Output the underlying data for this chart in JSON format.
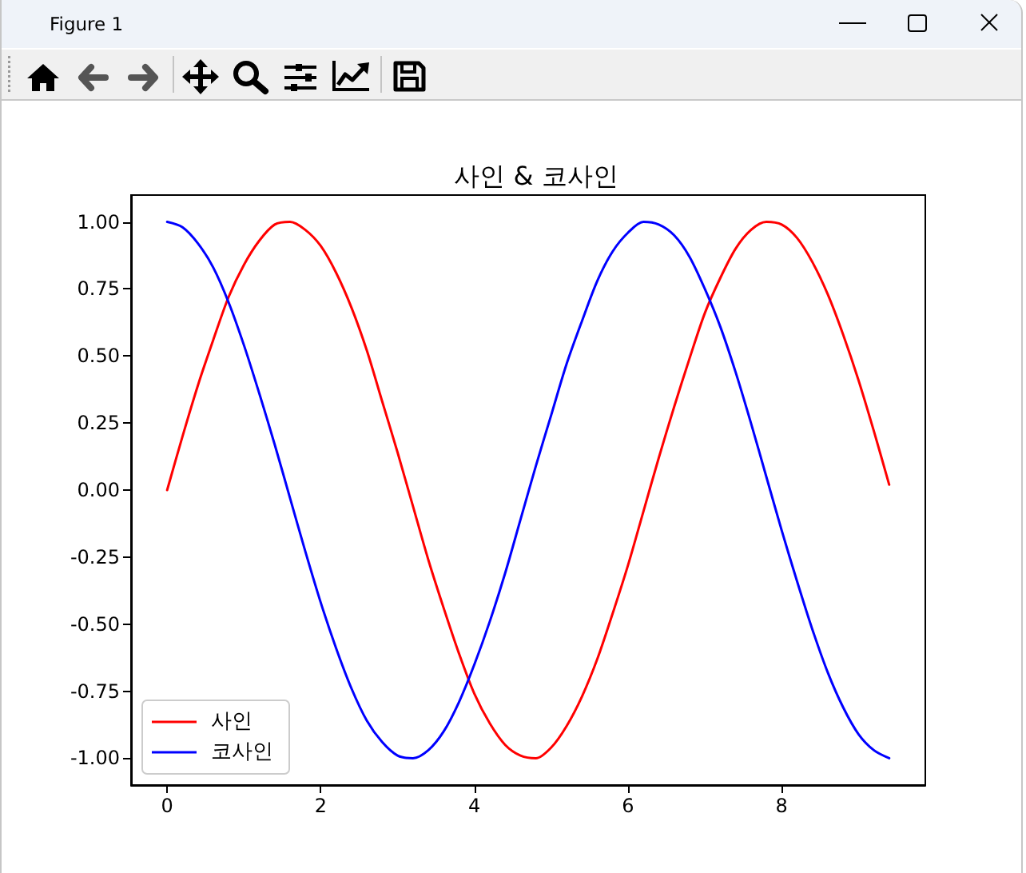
{
  "chart_data": {
    "type": "line",
    "title": "사인 & 코사인",
    "annotations": [
      "Figure 1"
    ],
    "x": [
      0,
      0.2,
      0.4,
      0.6,
      0.8,
      1,
      1.2,
      1.4,
      1.6,
      1.8,
      2,
      2.2,
      2.4,
      2.6,
      2.8,
      3,
      3.2,
      3.4,
      3.6,
      3.8,
      4,
      4.2,
      4.4,
      4.6,
      4.8,
      5,
      5.2,
      5.4,
      5.6,
      5.8,
      6,
      6.2,
      6.4,
      6.6,
      6.8,
      7,
      7.2,
      7.4,
      7.6,
      7.8,
      8,
      8.2,
      8.4,
      8.6,
      8.8,
      9,
      9.2,
      9.4
    ],
    "series": [
      {
        "name": "사인",
        "color": "#ff0000",
        "values": [
          0,
          0.2,
          0.39,
          0.56,
          0.72,
          0.84,
          0.93,
          0.99,
          1,
          0.97,
          0.91,
          0.81,
          0.68,
          0.52,
          0.33,
          0.14,
          -0.06,
          -0.26,
          -0.44,
          -0.61,
          -0.76,
          -0.87,
          -0.95,
          -0.99,
          -1,
          -0.96,
          -0.88,
          -0.77,
          -0.63,
          -0.46,
          -0.28,
          -0.08,
          0.12,
          0.31,
          0.49,
          0.66,
          0.79,
          0.9,
          0.97,
          1,
          0.99,
          0.94,
          0.85,
          0.73,
          0.58,
          0.41,
          0.22,
          0.02
        ]
      },
      {
        "name": "코사인",
        "color": "#0000ff",
        "values": [
          1,
          0.98,
          0.92,
          0.83,
          0.7,
          0.54,
          0.36,
          0.17,
          -0.03,
          -0.23,
          -0.42,
          -0.59,
          -0.74,
          -0.86,
          -0.94,
          -0.99,
          -1,
          -0.97,
          -0.9,
          -0.79,
          -0.65,
          -0.49,
          -0.31,
          -0.11,
          0.09,
          0.28,
          0.47,
          0.63,
          0.78,
          0.89,
          0.96,
          1,
          0.99,
          0.95,
          0.87,
          0.75,
          0.61,
          0.44,
          0.25,
          0.05,
          -0.15,
          -0.34,
          -0.52,
          -0.68,
          -0.81,
          -0.91,
          -0.97,
          -1
        ]
      }
    ],
    "xlim": [
      -0.47,
      9.87
    ],
    "ylim": [
      -1.1,
      1.1
    ],
    "xticks": [
      0,
      2,
      4,
      6,
      8
    ],
    "yticks": [
      {
        "value": -1,
        "label": "-1.00"
      },
      {
        "value": -0.75,
        "label": "-0.75"
      },
      {
        "value": -0.5,
        "label": "-0.50"
      },
      {
        "value": -0.25,
        "label": "-0.25"
      },
      {
        "value": 0,
        "label": "0.00"
      },
      {
        "value": 0.25,
        "label": "0.25"
      },
      {
        "value": 0.5,
        "label": "0.50"
      },
      {
        "value": 0.75,
        "label": "0.75"
      },
      {
        "value": 1,
        "label": "1.00"
      }
    ],
    "legend": "bottom left",
    "grid": false,
    "line_style": "solid",
    "marker": "none"
  }
}
